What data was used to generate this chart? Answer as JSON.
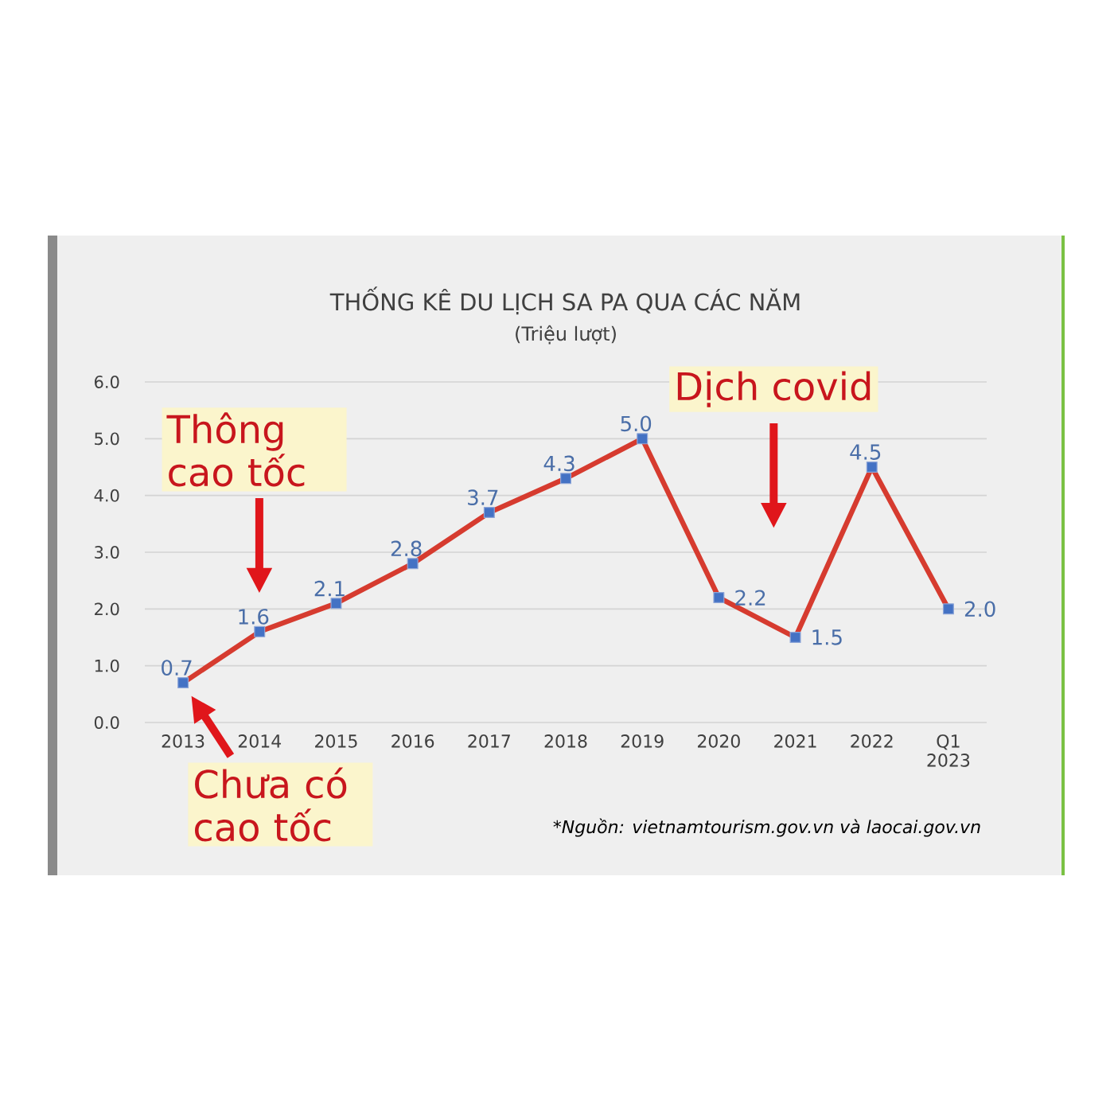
{
  "chart_data": {
    "type": "line",
    "title": "THỐNG KÊ DU LỊCH SA PA QUA CÁC NĂM",
    "subtitle": "(Triệu lượt)",
    "categories": [
      "2013",
      "2014",
      "2015",
      "2016",
      "2017",
      "2018",
      "2019",
      "2020",
      "2021",
      "2022",
      "Q1 2023"
    ],
    "values": [
      0.7,
      1.6,
      2.1,
      2.8,
      3.7,
      4.3,
      5.0,
      2.2,
      1.5,
      4.5,
      2.0
    ],
    "value_labels": [
      "0.7",
      "1.6",
      "2.1",
      "2.8",
      "3.7",
      "4.3",
      "5.0",
      "2.2",
      "1.5",
      "4.5",
      "2.0"
    ],
    "color": "#d63b2f",
    "marker": "square",
    "line_style": "solid",
    "grid": "y",
    "ylim": [
      0,
      6
    ],
    "yticks": [
      {
        "value": 0,
        "label": "0.0"
      },
      {
        "value": 1,
        "label": "1.0"
      },
      {
        "value": 2,
        "label": "2.0"
      },
      {
        "value": 3,
        "label": "3.0"
      },
      {
        "value": 4,
        "label": "4.0"
      },
      {
        "value": 5,
        "label": "5.0"
      },
      {
        "value": 6,
        "label": "6.0"
      }
    ],
    "annotations": [
      "Thông cao tốc",
      "Chưa có cao tốc",
      "Dịch covid",
      "*Nguồn: vietnamtourism.gov.vn và laocai.gov.vn"
    ]
  }
}
